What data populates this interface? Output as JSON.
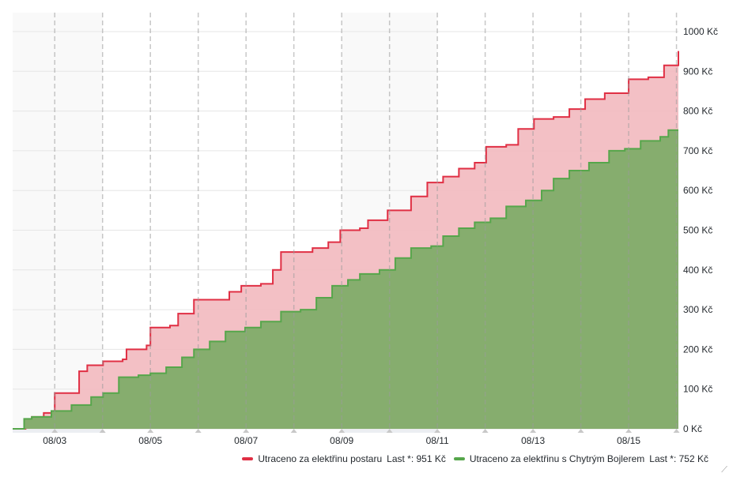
{
  "chart_data": {
    "type": "area",
    "title": "",
    "xlabel": "",
    "ylabel": "",
    "x_unit": "day of August",
    "xlim": [
      2.12,
      16.04
    ],
    "ylim": [
      0,
      1000
    ],
    "y_ticks": [
      0,
      100,
      200,
      300,
      400,
      500,
      600,
      700,
      800,
      900,
      1000
    ],
    "y_tick_labels": [
      "0 Kč",
      "100 Kč",
      "200 Kč",
      "300 Kč",
      "400 Kč",
      "500 Kč",
      "600 Kč",
      "700 Kč",
      "800 Kč",
      "900 Kč",
      "1000 Kč"
    ],
    "x_ticks": [
      3,
      5,
      7,
      9,
      11,
      13,
      15
    ],
    "x_tick_labels": [
      "08/03",
      "08/05",
      "08/07",
      "08/09",
      "08/11",
      "08/13",
      "08/15"
    ],
    "day_lines": [
      3,
      4,
      5,
      6,
      7,
      8,
      9,
      10,
      11,
      12,
      13,
      14,
      15,
      16
    ],
    "time_regions": [
      [
        2.12,
        4.0
      ],
      [
        9.0,
        11.0
      ]
    ],
    "grid": true,
    "legend_position": "bottom-right",
    "series": [
      {
        "name": "Utraceno za elektřinu postaru",
        "last_label": "Last *: 951 Kč",
        "color": "#e02f44",
        "fill": "#f2b9bf",
        "x": [
          2.12,
          2.39,
          2.52,
          2.77,
          3.0,
          3.35,
          3.51,
          3.68,
          4.01,
          4.42,
          4.5,
          4.92,
          5.0,
          5.41,
          5.58,
          5.91,
          6.4,
          6.65,
          6.9,
          7.31,
          7.56,
          7.73,
          8.39,
          8.72,
          8.97,
          9.38,
          9.55,
          9.96,
          10.45,
          10.79,
          11.12,
          11.45,
          11.78,
          12.02,
          12.44,
          12.69,
          13.02,
          13.43,
          13.76,
          14.09,
          14.5,
          15.0,
          15.41,
          15.74,
          16.04
        ],
        "y": [
          0,
          20,
          30,
          40,
          90,
          90,
          145,
          160,
          170,
          175,
          200,
          210,
          255,
          260,
          290,
          325,
          325,
          345,
          360,
          365,
          400,
          445,
          455,
          470,
          500,
          505,
          525,
          550,
          585,
          620,
          635,
          655,
          670,
          710,
          715,
          755,
          780,
          785,
          805,
          830,
          845,
          880,
          885,
          915,
          951
        ]
      },
      {
        "name": "Utraceno za elektřinu s Chytrým Bojlerem",
        "last_label": "Last *: 752 Kč",
        "color": "#56a64b",
        "fill": "#86ad6e",
        "x": [
          2.12,
          2.36,
          2.52,
          2.93,
          3.35,
          3.76,
          4.01,
          4.34,
          4.75,
          5.0,
          5.33,
          5.66,
          5.91,
          6.24,
          6.57,
          6.98,
          7.31,
          7.73,
          8.14,
          8.47,
          8.8,
          9.13,
          9.38,
          9.79,
          10.12,
          10.45,
          10.87,
          11.12,
          11.45,
          11.78,
          12.11,
          12.44,
          12.85,
          13.18,
          13.43,
          13.76,
          14.17,
          14.59,
          14.92,
          15.25,
          15.66,
          15.83,
          16.04
        ],
        "y": [
          0,
          25,
          30,
          45,
          60,
          80,
          90,
          130,
          135,
          140,
          155,
          180,
          200,
          220,
          245,
          255,
          270,
          295,
          300,
          330,
          360,
          375,
          390,
          400,
          430,
          455,
          460,
          485,
          505,
          520,
          530,
          560,
          575,
          600,
          630,
          650,
          670,
          700,
          705,
          725,
          735,
          752,
          752
        ]
      }
    ]
  }
}
